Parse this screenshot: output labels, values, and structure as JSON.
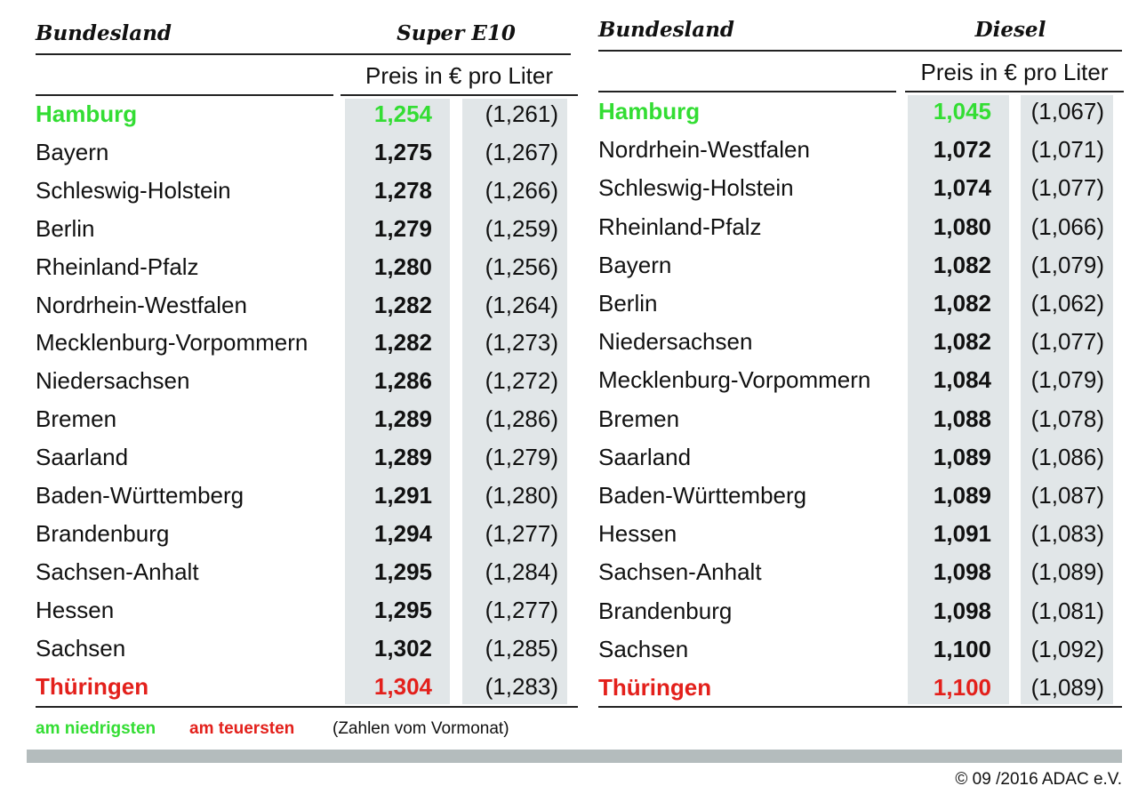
{
  "tables": [
    {
      "header": {
        "region": "Bundesland",
        "fuel": "Super E10",
        "unit": "Preis in € pro Liter"
      },
      "rows": [
        [
          "Hamburg",
          "1,254",
          "(1,261)"
        ],
        [
          "Bayern",
          "1,275",
          "(1,267)"
        ],
        [
          "Schleswig-Holstein",
          "1,278",
          "(1,266)"
        ],
        [
          "Berlin",
          "1,279",
          "(1,259)"
        ],
        [
          "Rheinland-Pfalz",
          "1,280",
          "(1,256)"
        ],
        [
          "Nordrhein-Westfalen",
          "1,282",
          "(1,264)"
        ],
        [
          "Mecklenburg-Vorpommern",
          "1,282",
          "(1,273)"
        ],
        [
          "Niedersachsen",
          "1,286",
          "(1,272)"
        ],
        [
          "Bremen",
          "1,289",
          "(1,286)"
        ],
        [
          "Saarland",
          "1,289",
          "(1,279)"
        ],
        [
          "Baden-Württemberg",
          "1,291",
          "(1,280)"
        ],
        [
          "Brandenburg",
          "1,294",
          "(1,277)"
        ],
        [
          "Sachsen-Anhalt",
          "1,295",
          "(1,284)"
        ],
        [
          "Hessen",
          "1,295",
          "(1,277)"
        ],
        [
          "Sachsen",
          "1,302",
          "(1,285)"
        ],
        [
          "Thüringen",
          "1,304",
          "(1,283)"
        ]
      ]
    },
    {
      "header": {
        "region": "Bundesland",
        "fuel": "Diesel",
        "unit": "Preis in € pro Liter"
      },
      "rows": [
        [
          "Hamburg",
          "1,045",
          "(1,067)"
        ],
        [
          "Nordrhein-Westfalen",
          "1,072",
          "(1,071)"
        ],
        [
          "Schleswig-Holstein",
          "1,074",
          "(1,077)"
        ],
        [
          "Rheinland-Pfalz",
          "1,080",
          "(1,066)"
        ],
        [
          "Bayern",
          "1,082",
          "(1,079)"
        ],
        [
          "Berlin",
          "1,082",
          "(1,062)"
        ],
        [
          "Niedersachsen",
          "1,082",
          "(1,077)"
        ],
        [
          "Mecklenburg-Vorpommern",
          "1,084",
          "(1,079)"
        ],
        [
          "Bremen",
          "1,088",
          "(1,078)"
        ],
        [
          "Saarland",
          "1,089",
          "(1,086)"
        ],
        [
          "Baden-Württemberg",
          "1,089",
          "(1,087)"
        ],
        [
          "Hessen",
          "1,091",
          "(1,083)"
        ],
        [
          "Sachsen-Anhalt",
          "1,098",
          "(1,089)"
        ],
        [
          "Brandenburg",
          "1,098",
          "(1,081)"
        ],
        [
          "Sachsen",
          "1,100",
          "(1,092)"
        ],
        [
          "Thüringen",
          "1,100",
          "(1,089)"
        ]
      ]
    }
  ],
  "legend": {
    "lowest": "am niedrigsten",
    "highest": "am teuersten",
    "note": "(Zahlen vom Vormonat)"
  },
  "footer": "© 09 /2016 ADAC e.V."
}
